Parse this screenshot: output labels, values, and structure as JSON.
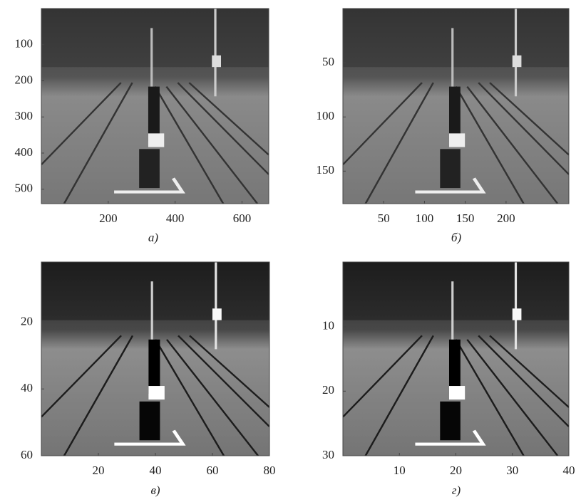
{
  "panels": [
    {
      "caption": "а)",
      "xlim": [
        0,
        680
      ],
      "ylim": [
        0,
        540
      ],
      "xticks": [
        200,
        400,
        600
      ],
      "yticks": [
        100,
        200,
        300,
        400,
        500
      ]
    },
    {
      "caption": "б)",
      "xlim": [
        0,
        277
      ],
      "ylim": [
        0,
        180
      ],
      "xticks": [
        50,
        100,
        150,
        200
      ],
      "yticks": [
        50,
        100,
        150
      ]
    },
    {
      "caption": "в)",
      "xlim": [
        0,
        80
      ],
      "ylim": [
        2,
        60
      ],
      "xticks": [
        20,
        40,
        60,
        80
      ],
      "yticks": [
        20,
        40,
        60
      ]
    },
    {
      "caption": "г)",
      "xlim": [
        0,
        40
      ],
      "ylim": [
        0,
        30
      ],
      "xticks": [
        10,
        20,
        30,
        40
      ],
      "yticks": [
        10,
        20,
        30
      ]
    }
  ]
}
